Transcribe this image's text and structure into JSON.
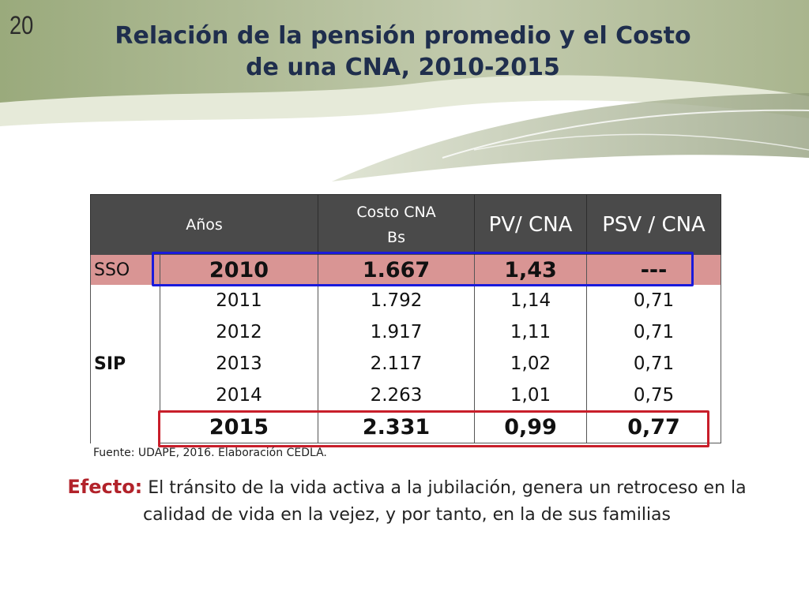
{
  "slide_number": "20",
  "title": {
    "line1": "Relación de la pensión promedio y el Costo",
    "line2": "de una CNA, 2010-2015"
  },
  "table": {
    "headers": {
      "years": "Años",
      "cost_line1": "Costo CNA",
      "cost_line2": "Bs",
      "pv": "PV/ CNA",
      "psv": "PSV / CNA"
    },
    "groups": {
      "sso": "SSO",
      "sip": "SIP"
    },
    "rows": [
      {
        "year": "2010",
        "cost": "1.667",
        "pv": "1,43",
        "psv": "---"
      },
      {
        "year": "2011",
        "cost": "1.792",
        "pv": "1,14",
        "psv": "0,71"
      },
      {
        "year": "2012",
        "cost": "1.917",
        "pv": "1,11",
        "psv": "0,71"
      },
      {
        "year": "2013",
        "cost": "2.117",
        "pv": "1,02",
        "psv": "0,71"
      },
      {
        "year": "2014",
        "cost": "2.263",
        "pv": "1,01",
        "psv": "0,75"
      },
      {
        "year": "2015",
        "cost": "2.331",
        "pv": "0,99",
        "psv": "0,77"
      }
    ]
  },
  "source": "Fuente: UDAPE, 2016. Elaboración CEDLA.",
  "effect": {
    "label": "Efecto:",
    "text": " El tránsito de la vida activa a la jubilación, genera un retroceso en la calidad de vida en la vejez, y por tanto, en la de sus familias"
  },
  "colors": {
    "header_bg": "#4a4a4a",
    "sso_row": "#d99594",
    "highlight_2010": "#1a1adb",
    "highlight_2015": "#c81e2a",
    "title": "#1f2e4d",
    "effect_label": "#b2222a"
  }
}
